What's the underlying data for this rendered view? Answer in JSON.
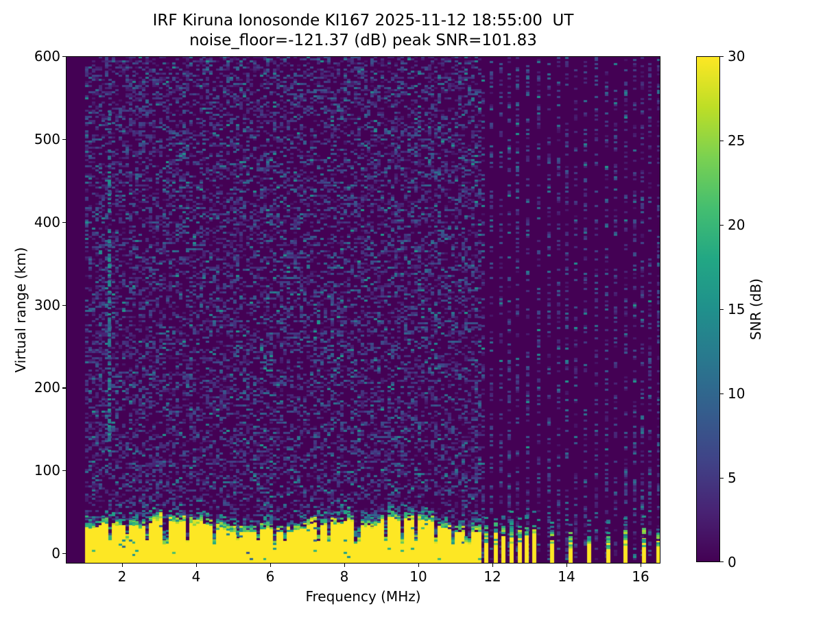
{
  "figure": {
    "title_line1": "IRF Kiruna Ionosonde KI167 2025-11-12 18:55:00  UT",
    "title_line2": "noise_floor=-121.37 (dB) peak SNR=101.83",
    "x_axis": {
      "label": "Frequency (MHz)",
      "ticks": [
        2,
        4,
        6,
        8,
        10,
        12,
        14,
        16
      ]
    },
    "y_axis": {
      "label": "Virtual range (km)",
      "ticks": [
        0,
        100,
        200,
        300,
        400,
        500,
        600
      ]
    },
    "colorbar": {
      "label": "SNR (dB)",
      "ticks": [
        0,
        5,
        10,
        15,
        20,
        25,
        30
      ]
    }
  },
  "chart_data": {
    "type": "heatmap",
    "title": "IRF Kiruna Ionosonde KI167 2025-11-12 18:55:00  UT",
    "subtitle": "noise_floor=-121.37 (dB) peak SNR=101.83",
    "station": "IRF Kiruna Ionosonde KI167",
    "observation_time_ut": "2025-11-12 18:55:00",
    "noise_floor_db": -121.37,
    "peak_snr_db": 101.83,
    "xlabel": "Frequency (MHz)",
    "ylabel": "Virtual range (km)",
    "xlim": [
      0.48,
      16.56
    ],
    "ylim": [
      -12,
      600
    ],
    "x_ticks": [
      2,
      4,
      6,
      8,
      10,
      12,
      14,
      16
    ],
    "y_ticks": [
      0,
      100,
      200,
      300,
      400,
      500,
      600
    ],
    "grid": false,
    "colorbar": {
      "label": "SNR (dB)",
      "range": [
        0,
        30
      ],
      "ticks": [
        0,
        5,
        10,
        15,
        20,
        25,
        30
      ],
      "colormap": "viridis",
      "position": "right"
    },
    "features": {
      "background_snr_db": 0,
      "speckle_noise": {
        "freq_range_mhz": [
          1.0,
          11.66
        ],
        "coverage": 0.38,
        "typical_snr_db": [
          1,
          12
        ]
      },
      "ground_echo_band": {
        "freq_range_mhz": [
          1.0,
          11.66
        ],
        "top_range_km_min": 26,
        "top_range_km_max": 44,
        "snr_db": 30
      },
      "band_notch_freqs_mhz": [
        1.63,
        2.12,
        2.63,
        3.13,
        3.71,
        4.44,
        5.05,
        5.65,
        6.08,
        6.35,
        7.28,
        7.52,
        8.3,
        9.05,
        9.55,
        9.9,
        10.45,
        10.9,
        11.3
      ],
      "stepped_stripes_mhz_cluster": [
        11.78,
        12.04,
        12.24,
        12.47,
        12.69,
        12.87,
        13.08
      ],
      "stepped_stripes_mhz_sparse": [
        13.55,
        14.05,
        14.55,
        15.07,
        15.54,
        16.04,
        16.43
      ],
      "hf_noise_columns": {
        "freq_range_mhz": [
          11.7,
          16.47
        ],
        "spacing_mhz": 0.24,
        "coverage": 0.32
      },
      "interference_line": {
        "freq_mhz": 1.62,
        "range_km": [
          120,
          555
        ],
        "snr_db": [
          8,
          16
        ]
      }
    }
  }
}
